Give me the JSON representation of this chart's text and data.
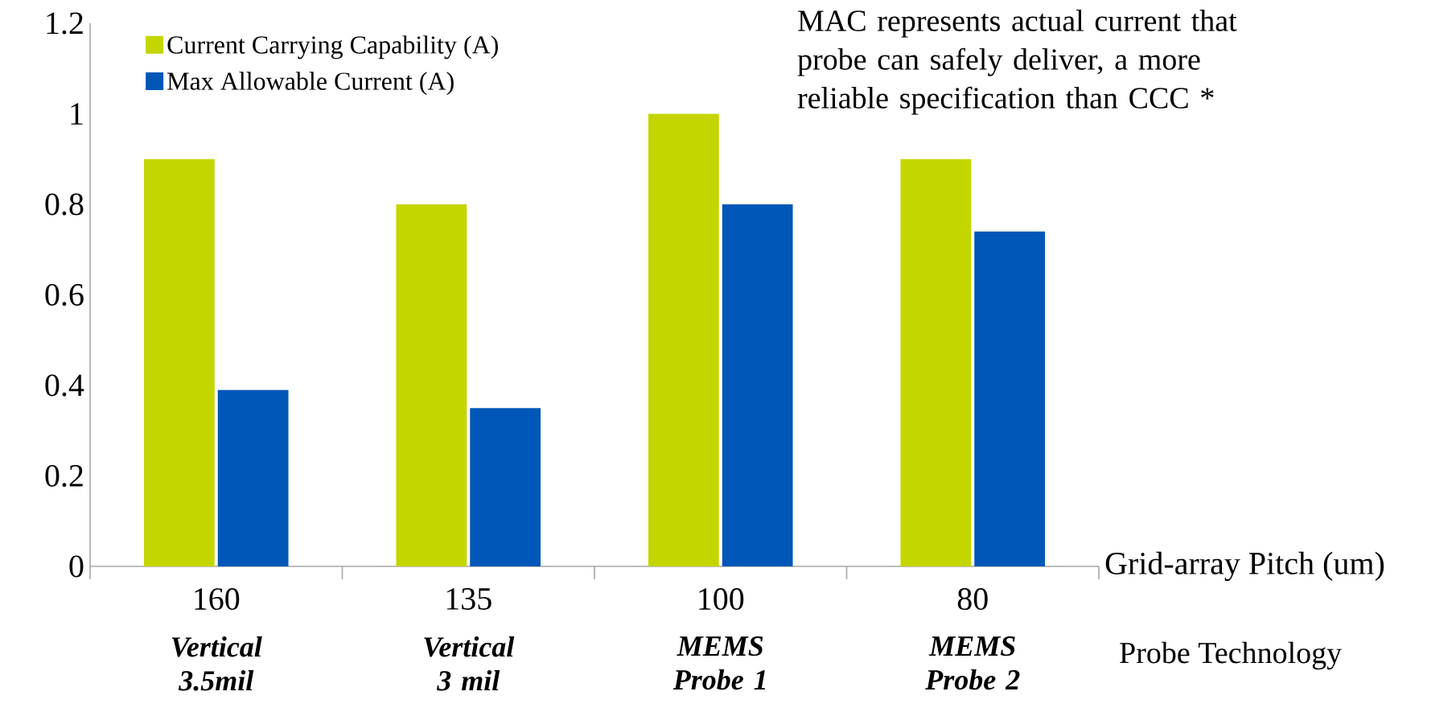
{
  "chart_data": {
    "type": "bar",
    "categories": [
      "160",
      "135",
      "100",
      "80"
    ],
    "series": [
      {
        "name": "Current Carrying Capability (A)",
        "color": "#c4d600",
        "values": [
          0.9,
          0.8,
          1.0,
          0.9
        ]
      },
      {
        "name": "Max Allowable Current (A)",
        "color": "#0057b8",
        "values": [
          0.39,
          0.35,
          0.8,
          0.74
        ]
      }
    ],
    "xlabel": "Grid-array Pitch (um)",
    "ylim": [
      0,
      1.2
    ],
    "yticks": [
      0,
      0.2,
      0.4,
      0.6,
      0.8,
      1,
      1.2
    ],
    "legend": "top left",
    "grid": false,
    "annotations": [
      "MAC represents actual current that probe can safely deliver, a more reliable specification than CCC *",
      "Vertical 3.5mil",
      "Vertical 3 mil",
      "MEMS Probe 1",
      "MEMS Probe 2",
      "Probe Technology"
    ]
  }
}
